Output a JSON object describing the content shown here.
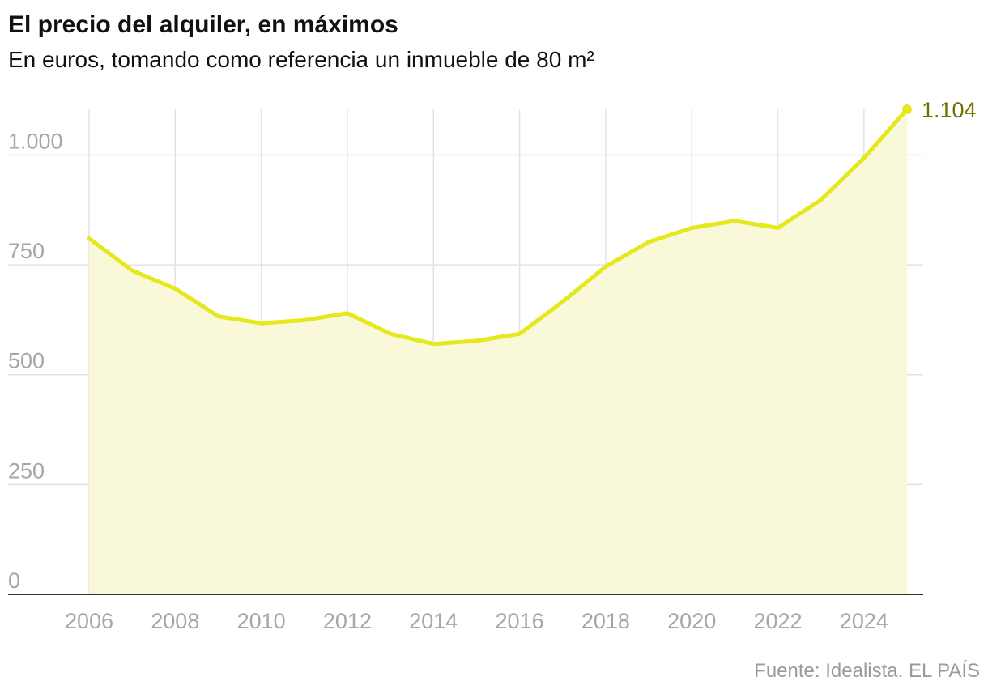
{
  "title": "El precio del alquiler, en máximos",
  "subtitle": "En euros, tomando como referencia un inmueble de 80 m²",
  "source": "Fuente: Idealista. EL PAÍS",
  "colors": {
    "line": "#e4e81c",
    "area": "#f9f9da",
    "end_label": "#6f7200",
    "grid": "#e3e3e3",
    "axis": "#333333",
    "tick_text": "#a6a6a6"
  },
  "chart_data": {
    "type": "area",
    "x": [
      2006,
      2007,
      2008,
      2009,
      2010,
      2011,
      2012,
      2013,
      2014,
      2015,
      2016,
      2017,
      2018,
      2019,
      2020,
      2021,
      2022,
      2023,
      2024,
      2025
    ],
    "values": [
      810,
      737,
      696,
      633,
      617,
      624,
      640,
      593,
      570,
      577,
      593,
      666,
      746,
      802,
      834,
      850,
      834,
      898,
      993,
      1104
    ],
    "end_label": "1.104",
    "ylim": [
      0,
      1104
    ],
    "yticks": [
      {
        "value": 0,
        "label": "0"
      },
      {
        "value": 250,
        "label": "250"
      },
      {
        "value": 500,
        "label": "500"
      },
      {
        "value": 750,
        "label": "750"
      },
      {
        "value": 1000,
        "label": "1.000"
      }
    ],
    "xticks": [
      2006,
      2008,
      2010,
      2012,
      2014,
      2016,
      2018,
      2020,
      2022,
      2024
    ],
    "grid": true,
    "legend": "none"
  }
}
